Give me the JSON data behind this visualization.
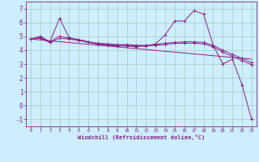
{
  "background_color": "#cceeff",
  "grid_color": "#aaccbb",
  "line_color": "#882288",
  "xlabel": "Windchill (Refroidissement éolien,°C)",
  "xlim": [
    -0.5,
    23.5
  ],
  "ylim": [
    -1.5,
    7.5
  ],
  "yticks": [
    -1,
    0,
    1,
    2,
    3,
    4,
    5,
    6,
    7
  ],
  "xticks": [
    0,
    1,
    2,
    3,
    4,
    5,
    6,
    7,
    8,
    9,
    10,
    11,
    12,
    13,
    14,
    15,
    16,
    17,
    18,
    19,
    20,
    21,
    22,
    23
  ],
  "series": [
    {
      "x": [
        0,
        1,
        2,
        3,
        4,
        5,
        6,
        7,
        8,
        9,
        10,
        11,
        12,
        13,
        14,
        15,
        16,
        17,
        18,
        19,
        20,
        21,
        22,
        23
      ],
      "y": [
        4.8,
        5.0,
        4.6,
        6.3,
        4.9,
        4.75,
        4.6,
        4.4,
        4.35,
        4.3,
        4.3,
        4.25,
        4.3,
        4.45,
        5.1,
        6.1,
        6.1,
        6.85,
        6.6,
        4.35,
        3.0,
        3.35,
        1.5,
        -1.0
      ],
      "marker": true
    },
    {
      "x": [
        0,
        1,
        2,
        3,
        4,
        5,
        6,
        7,
        8,
        9,
        10,
        11,
        12,
        13,
        14,
        15,
        16,
        17,
        18,
        19,
        20,
        21,
        22,
        23
      ],
      "y": [
        4.8,
        4.85,
        4.55,
        4.85,
        4.8,
        4.7,
        4.55,
        4.45,
        4.4,
        4.35,
        4.35,
        4.3,
        4.3,
        4.35,
        4.4,
        4.5,
        4.5,
        4.5,
        4.45,
        4.25,
        3.85,
        3.55,
        3.25,
        2.95
      ],
      "marker": true
    },
    {
      "x": [
        0,
        1,
        2,
        3,
        4,
        5,
        6,
        7,
        8,
        9,
        10,
        11,
        12,
        13,
        14,
        15,
        16,
        17,
        18,
        19,
        20,
        21,
        22,
        23
      ],
      "y": [
        4.8,
        4.9,
        4.6,
        5.0,
        4.85,
        4.75,
        4.6,
        4.5,
        4.45,
        4.4,
        4.4,
        4.35,
        4.35,
        4.4,
        4.5,
        4.55,
        4.6,
        4.6,
        4.55,
        4.35,
        4.0,
        3.7,
        3.4,
        3.1
      ],
      "marker": true
    },
    {
      "x": [
        0,
        23
      ],
      "y": [
        4.8,
        3.35
      ],
      "marker": false
    }
  ]
}
